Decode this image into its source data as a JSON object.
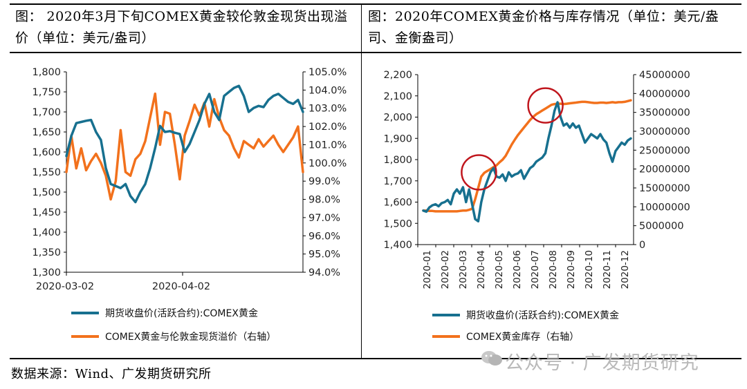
{
  "left_title": "图：  2020年3月下旬COMEX黄金较伦敦金现货出现溢价（单位：美元/盎司）",
  "right_title": "图：2020年COMEX黄金价格与库存情况（单位：美元/盎司、金衡盎司）",
  "source": "数据来源：Wind、广发期货研究所",
  "watermark": "公众号 · 广发期货研究",
  "colors": {
    "blue": "#17708F",
    "orange": "#F2711C",
    "circle": "#C0161D",
    "axis": "#000000"
  },
  "chart_data": [
    {
      "type": "line",
      "title": "2020年3月下旬COMEX黄金较伦敦金现货出现溢价（单位：美元/盎司）",
      "x_tick_labels": [
        "2020-03-02",
        "2020-04-02"
      ],
      "left_axis": {
        "range": [
          1300,
          1800
        ],
        "ticks": [
          "1,800",
          "1,750",
          "1,700",
          "1,650",
          "1,600",
          "1,550",
          "1,500",
          "1,450",
          "1,400",
          "1,350",
          "1,300"
        ]
      },
      "right_axis": {
        "range": [
          94.0,
          105.0
        ],
        "ticks": [
          "105.0%",
          "104.0%",
          "103.0%",
          "102.0%",
          "101.0%",
          "100.0%",
          "99.0%",
          "98.0%",
          "97.0%",
          "96.0%",
          "95.0%",
          "94.0%"
        ]
      },
      "series": [
        {
          "name": "期货收盘价(活跃合约):COMEX黄金",
          "axis": "left",
          "values": [
            1590,
            1640,
            1672,
            1675,
            1678,
            1680,
            1650,
            1630,
            1560,
            1520,
            1515,
            1510,
            1520,
            1490,
            1475,
            1500,
            1520,
            1560,
            1610,
            1665,
            1650,
            1652,
            1648,
            1645,
            1600,
            1620,
            1650,
            1680,
            1720,
            1745,
            1700,
            1680,
            1740,
            1750,
            1760,
            1765,
            1740,
            1700,
            1710,
            1715,
            1712,
            1730,
            1740,
            1745,
            1735,
            1725,
            1720,
            1730,
            1700
          ]
        },
        {
          "name": "COMEX黄金与伦敦金现货溢价（右轴）",
          "axis": "right",
          "values": [
            99.5,
            101.5,
            99.7,
            100.8,
            99.6,
            100.1,
            100.5,
            100.0,
            99.3,
            98.0,
            99.0,
            101.8,
            99.5,
            99.3,
            100.2,
            100.5,
            101.2,
            102.5,
            103.8,
            101.0,
            102.8,
            102.7,
            101.0,
            99.1,
            101.5,
            102.3,
            103.2,
            102.6,
            103.3,
            102.0,
            103.5,
            102.5,
            101.8,
            101.5,
            100.8,
            100.3,
            101.2,
            101.0,
            100.8,
            101.3,
            100.9,
            101.2,
            101.5,
            101.0,
            100.6,
            101.0,
            101.4,
            102.0,
            99.5
          ]
        }
      ]
    },
    {
      "type": "line",
      "title": "2020年COMEX黄金价格与库存情况（单位：美元/盎司、金衡盎司）",
      "x_tick_labels": [
        "2020-01",
        "2020-02",
        "2020-03",
        "2020-04",
        "2020-05",
        "2020-06",
        "2020-07",
        "2020-08",
        "2020-09",
        "2020-10",
        "2020-11",
        "2020-12"
      ],
      "left_axis": {
        "range": [
          1400,
          2200
        ],
        "ticks": [
          "2,200",
          "2,100",
          "2,000",
          "1,900",
          "1,800",
          "1,700",
          "1,600",
          "1,500",
          "1,400"
        ]
      },
      "right_axis": {
        "range": [
          0,
          45000000
        ],
        "ticks": [
          "45000000",
          "40000000",
          "35000000",
          "30000000",
          "25000000",
          "20000000",
          "15000000",
          "10000000",
          "5000000",
          "0"
        ]
      },
      "highlight_circles": [
        {
          "x": 3.4,
          "y_left": 1740
        },
        {
          "x": 7.1,
          "y_left": 2055
        }
      ],
      "series": [
        {
          "name": "期货收盘价(活跃合约):COMEX黄金",
          "axis": "left",
          "values": [
            1560,
            1555,
            1575,
            1585,
            1590,
            1580,
            1595,
            1600,
            1610,
            1590,
            1640,
            1660,
            1640,
            1670,
            1600,
            1660,
            1590,
            1520,
            1510,
            1600,
            1660,
            1700,
            1740,
            1760,
            1720,
            1715,
            1730,
            1700,
            1740,
            1720,
            1730,
            1735,
            1750,
            1710,
            1735,
            1760,
            1770,
            1790,
            1800,
            1810,
            1830,
            1900,
            1960,
            2030,
            2070,
            2000,
            1960,
            1970,
            1950,
            1970,
            1950,
            1960,
            1920,
            1880,
            1900,
            1920,
            1910,
            1900,
            1920,
            1895,
            1880,
            1830,
            1790,
            1840,
            1860,
            1880,
            1870,
            1890,
            1900
          ]
        },
        {
          "name": "COMEX黄金库存（右轴）",
          "axis": "right",
          "values": [
            9000000,
            9000000,
            8900000,
            8900000,
            8800000,
            8800000,
            8800000,
            8800000,
            8800000,
            8800000,
            8800000,
            8800000,
            8900000,
            9000000,
            9000000,
            9200000,
            9500000,
            12000000,
            15000000,
            18000000,
            19000000,
            19500000,
            20000000,
            20500000,
            21000000,
            21800000,
            22500000,
            23500000,
            25000000,
            26500000,
            27800000,
            29000000,
            30000000,
            31000000,
            32000000,
            33000000,
            33800000,
            34500000,
            35000000,
            35500000,
            36000000,
            36500000,
            37000000,
            37200000,
            37300000,
            37300000,
            37200000,
            37300000,
            37400000,
            37500000,
            37600000,
            37700000,
            37800000,
            37800000,
            37700000,
            37600000,
            37500000,
            37500000,
            37600000,
            37600000,
            37500000,
            37600000,
            37700000,
            37600000,
            37700000,
            37700000,
            37800000,
            38000000,
            38200000
          ]
        }
      ]
    }
  ]
}
